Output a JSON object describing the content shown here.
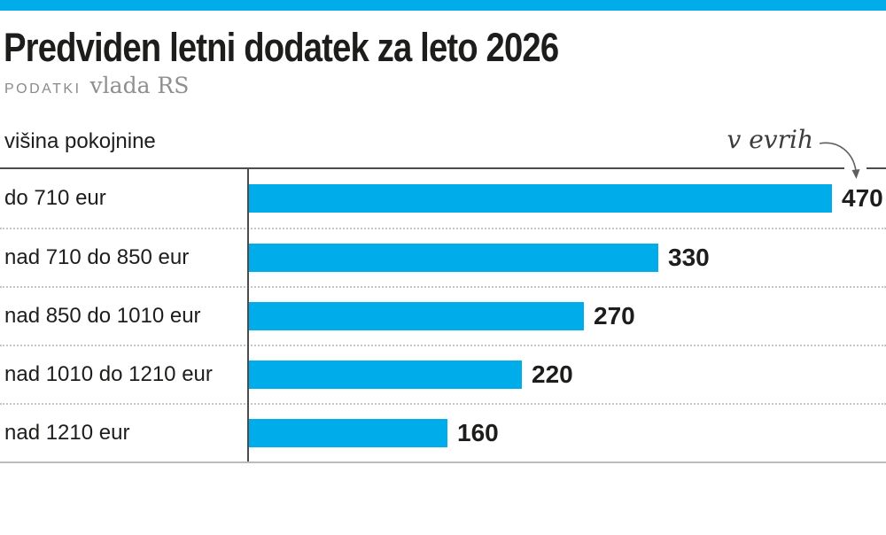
{
  "colors": {
    "accent": "#00ace9",
    "axis": "#4c4c4c",
    "text": "#1d1d1b",
    "muted": "#8a8a8a"
  },
  "header": {
    "title": "Predviden letni dodatek za leto 2026",
    "source_label": "PODATKI",
    "source_value": "vlada RS"
  },
  "chart_data": {
    "type": "bar",
    "orientation": "horizontal",
    "title": "Predviden letni dodatek za leto 2026",
    "source": "PODATKI vlada RS",
    "ylabel": "višina pokojnine",
    "xlabel": "v evrih",
    "unit_note": "v evrih",
    "categories": [
      "do 710 eur",
      "nad 710 do 850 eur",
      "nad 850 do 1010 eur",
      "nad 1010 do 1210 eur",
      "nad 1210 eur"
    ],
    "values": [
      470,
      330,
      270,
      220,
      160
    ],
    "xlim": [
      0,
      500
    ],
    "bar_color": "#00ace9",
    "value_labels_shown": true,
    "legend": "none",
    "grid": "dotted-row-separators"
  }
}
